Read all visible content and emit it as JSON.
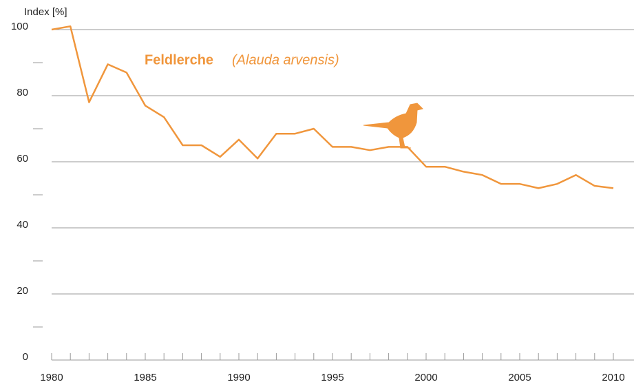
{
  "chart_data": {
    "type": "line",
    "title": "Feldlerche",
    "subtitle": "(Alauda arvensis)",
    "y_label": "Index [%]",
    "x": [
      1980,
      1981,
      1982,
      1983,
      1984,
      1985,
      1986,
      1987,
      1988,
      1989,
      1990,
      1991,
      1992,
      1993,
      1994,
      1995,
      1996,
      1997,
      1998,
      1999,
      2000,
      2001,
      2002,
      2003,
      2004,
      2005,
      2006,
      2007,
      2008,
      2009,
      2010
    ],
    "series": [
      {
        "name": "Feldlerche",
        "color": "#f0963c",
        "values": [
          100,
          101,
          78,
          89.5,
          87,
          77,
          73.5,
          65,
          65,
          61.5,
          66.7,
          61,
          68.5,
          68.5,
          70,
          64.5,
          64.5,
          63.5,
          64.5,
          64.5,
          58.5,
          58.5,
          57,
          56,
          53.3,
          53.3,
          52,
          53.3,
          56,
          52.7,
          52
        ]
      }
    ],
    "xlim": [
      1980,
      2010
    ],
    "xticks": [
      1980,
      1985,
      1990,
      1995,
      2000,
      2005,
      2010
    ],
    "ylim": [
      0,
      100
    ],
    "yticks": [
      0,
      20,
      40,
      60,
      80,
      100
    ],
    "yminorticks": [
      10,
      30,
      50,
      70,
      90
    ],
    "grid": true
  }
}
